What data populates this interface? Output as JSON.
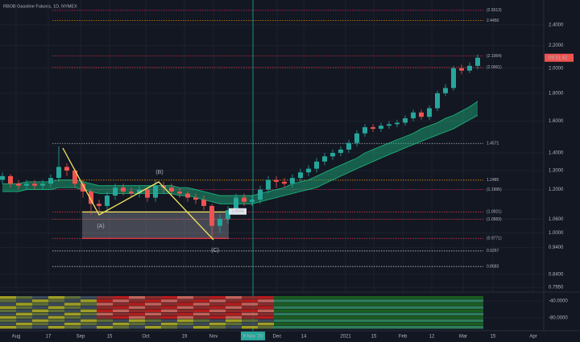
{
  "chart_data": {
    "type": "candlestick",
    "title": "RBOB Gasoline Futures, 1D, NYMEX",
    "log_scale": true,
    "xlim": [
      -0.3,
      67.2
    ],
    "ylim": [
      0.782,
      2.665
    ],
    "yticks": [
      {
        "value": 2.4,
        "label": "2.4000"
      },
      {
        "value": 2.2,
        "label": "2.2000"
      },
      {
        "value": 2.0,
        "label": "2.0000"
      },
      {
        "value": 1.8,
        "label": "1.8000"
      },
      {
        "value": 1.6,
        "label": "1.6000"
      },
      {
        "value": 1.4,
        "label": "1.4000"
      },
      {
        "value": 1.3,
        "label": "1.3000"
      },
      {
        "value": 1.2,
        "label": "1.2000"
      },
      {
        "value": 1.06,
        "label": "1.0600"
      },
      {
        "value": 1.0,
        "label": "1.0000"
      },
      {
        "value": 0.94,
        "label": "0.9400"
      },
      {
        "value": 0.84,
        "label": "0.8400"
      },
      {
        "value": 0.795,
        "label": "0.7950"
      }
    ],
    "xticks": [
      {
        "value": 1.7,
        "label": "Aug"
      },
      {
        "value": 5.7,
        "label": "17"
      },
      {
        "value": 9.7,
        "label": "Sep"
      },
      {
        "value": 13.3,
        "label": "15"
      },
      {
        "value": 17.8,
        "label": "Oct"
      },
      {
        "value": 22.6,
        "label": "19"
      },
      {
        "value": 26.2,
        "label": "Nov"
      },
      {
        "value": 34.1,
        "label": "Dec"
      },
      {
        "value": 37.4,
        "label": "14"
      },
      {
        "value": 42.6,
        "label": "2021"
      },
      {
        "value": 46.1,
        "label": "15"
      },
      {
        "value": 49.7,
        "label": "Feb"
      },
      {
        "value": 53.3,
        "label": "12"
      },
      {
        "value": 57.2,
        "label": "Mar"
      },
      {
        "value": 60.9,
        "label": "15"
      },
      {
        "value": 65.9,
        "label": "Apr"
      }
    ],
    "crosshair": {
      "x": 31.1,
      "label": "9 Nov '20",
      "color": "#26a69a"
    },
    "up_color": "#26a69a",
    "down_color": "#ef5350",
    "open": [
      1.25,
      1.27,
      1.23,
      1.22,
      1.23,
      1.22,
      1.23,
      1.26,
      1.32,
      1.3,
      1.23,
      1.19,
      1.13,
      1.12,
      1.17,
      1.21,
      1.19,
      1.18,
      1.2,
      1.16,
      1.22,
      1.21,
      1.19,
      1.18,
      1.16,
      1.15,
      1.12,
      1.03,
      1.06,
      1.1,
      1.16,
      1.14,
      1.15,
      1.2,
      1.25,
      1.24,
      1.23,
      1.26,
      1.29,
      1.31,
      1.35,
      1.38,
      1.4,
      1.42,
      1.46,
      1.52,
      1.56,
      1.55,
      1.57,
      1.58,
      1.59,
      1.62,
      1.66,
      1.63,
      1.69,
      1.8,
      1.84,
      2.0,
      1.98,
      2.02
    ],
    "high": [
      1.29,
      1.28,
      1.25,
      1.25,
      1.25,
      1.25,
      1.28,
      1.44,
      1.34,
      1.31,
      1.25,
      1.2,
      1.15,
      1.19,
      1.23,
      1.23,
      1.21,
      1.22,
      1.21,
      1.25,
      1.24,
      1.23,
      1.21,
      1.19,
      1.18,
      1.17,
      1.13,
      1.08,
      1.12,
      1.18,
      1.18,
      1.17,
      1.22,
      1.27,
      1.27,
      1.26,
      1.28,
      1.31,
      1.33,
      1.37,
      1.4,
      1.42,
      1.44,
      1.48,
      1.54,
      1.58,
      1.58,
      1.59,
      1.6,
      1.61,
      1.64,
      1.68,
      1.68,
      1.71,
      1.82,
      1.87,
      2.02,
      2.03,
      2.05,
      2.12
    ],
    "low": [
      1.23,
      1.21,
      1.2,
      1.2,
      1.2,
      1.2,
      1.21,
      1.24,
      1.27,
      1.21,
      1.16,
      1.08,
      1.09,
      1.1,
      1.15,
      1.17,
      1.16,
      1.16,
      1.14,
      1.14,
      1.18,
      1.17,
      1.16,
      1.14,
      1.13,
      1.1,
      0.98,
      1.0,
      1.04,
      1.08,
      1.12,
      1.12,
      1.13,
      1.18,
      1.21,
      1.21,
      1.21,
      1.24,
      1.27,
      1.29,
      1.33,
      1.36,
      1.38,
      1.4,
      1.44,
      1.5,
      1.53,
      1.53,
      1.55,
      1.56,
      1.57,
      1.6,
      1.61,
      1.61,
      1.67,
      1.78,
      1.82,
      1.95,
      1.96,
      1.99
    ],
    "close": [
      1.27,
      1.23,
      1.22,
      1.23,
      1.22,
      1.23,
      1.26,
      1.32,
      1.3,
      1.23,
      1.19,
      1.13,
      1.12,
      1.17,
      1.21,
      1.19,
      1.18,
      1.2,
      1.16,
      1.22,
      1.21,
      1.19,
      1.18,
      1.16,
      1.15,
      1.12,
      1.03,
      1.06,
      1.1,
      1.16,
      1.14,
      1.15,
      1.2,
      1.25,
      1.24,
      1.23,
      1.26,
      1.29,
      1.31,
      1.35,
      1.38,
      1.4,
      1.42,
      1.46,
      1.52,
      1.56,
      1.55,
      1.57,
      1.58,
      1.59,
      1.62,
      1.66,
      1.63,
      1.69,
      1.8,
      1.84,
      2.0,
      1.98,
      2.02,
      2.09
    ],
    "ribbon": {
      "color": "#1db980",
      "upper": [
        1.23,
        1.23,
        1.23,
        1.24,
        1.24,
        1.24,
        1.24,
        1.25,
        1.25,
        1.25,
        1.24,
        1.23,
        1.22,
        1.22,
        1.22,
        1.22,
        1.22,
        1.22,
        1.22,
        1.22,
        1.22,
        1.22,
        1.21,
        1.21,
        1.2,
        1.19,
        1.18,
        1.17,
        1.17,
        1.17,
        1.17,
        1.17,
        1.18,
        1.19,
        1.2,
        1.21,
        1.23,
        1.24,
        1.25,
        1.27,
        1.29,
        1.31,
        1.33,
        1.35,
        1.37,
        1.4,
        1.42,
        1.44,
        1.46,
        1.48,
        1.5,
        1.52,
        1.55,
        1.57,
        1.59,
        1.62,
        1.64,
        1.67,
        1.7,
        1.74
      ],
      "lower": [
        1.19,
        1.19,
        1.19,
        1.2,
        1.2,
        1.2,
        1.2,
        1.21,
        1.21,
        1.21,
        1.2,
        1.19,
        1.18,
        1.18,
        1.18,
        1.18,
        1.18,
        1.18,
        1.18,
        1.18,
        1.18,
        1.18,
        1.17,
        1.17,
        1.16,
        1.15,
        1.14,
        1.13,
        1.13,
        1.13,
        1.13,
        1.13,
        1.14,
        1.15,
        1.16,
        1.17,
        1.18,
        1.19,
        1.2,
        1.21,
        1.23,
        1.25,
        1.27,
        1.29,
        1.31,
        1.33,
        1.35,
        1.37,
        1.39,
        1.41,
        1.43,
        1.45,
        1.47,
        1.49,
        1.51,
        1.53,
        1.55,
        1.58,
        1.61,
        1.64
      ]
    },
    "levels": [
      {
        "value": 2.5513,
        "label": "(2.5513)",
        "color": "#e91e63"
      },
      {
        "value": 2.445,
        "label": "2.4450",
        "color": "#ff9800"
      },
      {
        "value": 2.1064,
        "label": "(2.1064)",
        "color": "#f23645"
      },
      {
        "value": 2.0061,
        "label": "(2.0061)",
        "color": "#f23645"
      },
      {
        "value": 1.4571,
        "label": "1.4571",
        "color": "#b2b5be"
      },
      {
        "value": 1.2485,
        "label": "1.2485",
        "color": "#ff9800"
      },
      {
        "value": 1.1995,
        "label": "(1.1995)",
        "color": "#e91e63"
      },
      {
        "value": 1.0921,
        "label": "(1.0921)",
        "color": "#f23645"
      },
      {
        "value": 1.0583,
        "label": "(1.0583)",
        "color": "#f23645"
      },
      {
        "value": 0.9771,
        "label": "(0.9771)",
        "color": "#f23645"
      },
      {
        "value": 0.9267,
        "label": "0.9267",
        "color": "#d1d4dc"
      },
      {
        "value": 0.8683,
        "label": "0.8683",
        "color": "#d1d4dc"
      }
    ],
    "cursor_tag": {
      "value": 1.0944,
      "label": "1.0944"
    },
    "price_tag": {
      "value": 2.09,
      "label": "09:31:42"
    },
    "pattern_labels": [
      "(A)",
      "(B)",
      "(C)"
    ],
    "indicator": {
      "ylim": [
        -108.6,
        -24.8
      ],
      "yticks": [
        {
          "value": -40,
          "label": "-40.0000"
        },
        {
          "value": -80,
          "label": "-80.0000"
        }
      ]
    }
  }
}
